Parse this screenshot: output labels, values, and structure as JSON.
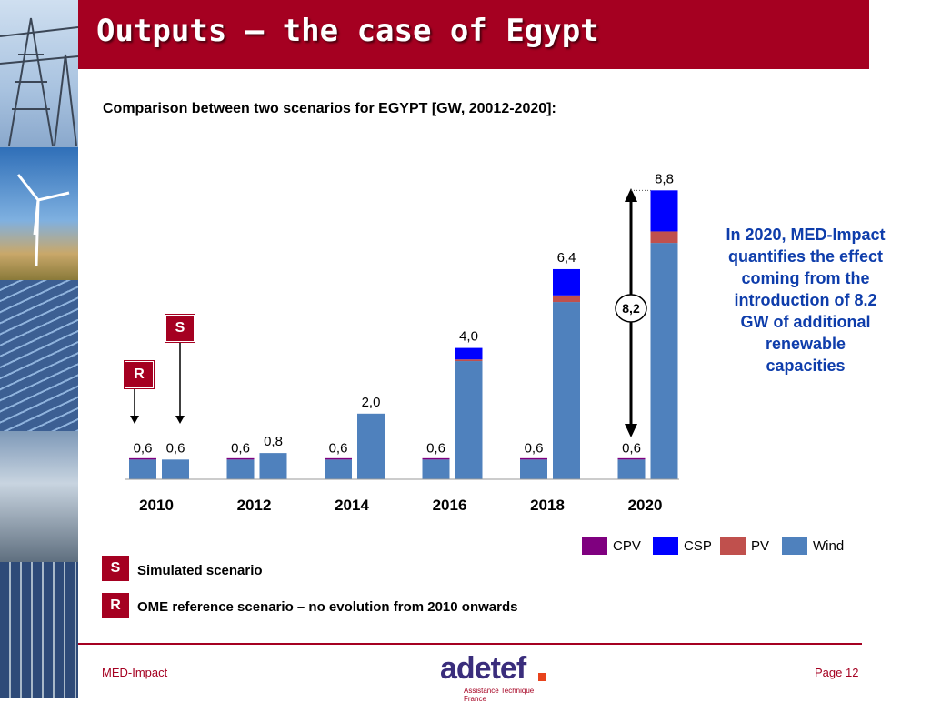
{
  "slide": {
    "title": "Outputs – the case of Egypt",
    "subtitle": "Comparison between two scenarios for EGYPT [GW, 20012-2020]:",
    "callout": "In 2020, MED-Impact quantifies the effect coming from the introduction of 8.2 GW of additional renewable capacities",
    "badge_s": "S",
    "badge_r": "R",
    "key": [
      {
        "badge": "S",
        "label": "Simulated scenario"
      },
      {
        "badge": "R",
        "label": "OME reference scenario – no evolution from 2010 onwards"
      }
    ],
    "footer_left": "MED-Impact",
    "footer_right": "Page 12",
    "logo_text": "adetef",
    "logo_sub": "Assistance Technique France",
    "arrow_label": "8,2"
  },
  "colors": {
    "accent": "#a50021",
    "callout_text": "#0e3dab",
    "wind": "#4f81bd",
    "pv": "#c0504d",
    "csp": "#0000ff",
    "cpv": "#7f007f"
  },
  "chart_data": {
    "type": "bar",
    "stacked": true,
    "categories": [
      "2010",
      "2012",
      "2014",
      "2016",
      "2018",
      "2020"
    ],
    "groups": [
      "R",
      "S"
    ],
    "ylim": [
      0,
      9
    ],
    "series_order": [
      "Wind",
      "PV",
      "CSP",
      "CPV"
    ],
    "legend_order": [
      "CPV",
      "CSP",
      "PV",
      "Wind"
    ],
    "legend_position": "bottom-right",
    "bars": [
      {
        "year": "2010",
        "scenario": "R",
        "total_label": "0,6",
        "Wind": 0.6,
        "PV": 0,
        "CSP": 0,
        "CPV": 0
      },
      {
        "year": "2010",
        "scenario": "S",
        "total_label": "0,6",
        "Wind": 0.6,
        "PV": 0,
        "CSP": 0,
        "CPV": 0
      },
      {
        "year": "2012",
        "scenario": "R",
        "total_label": "0,6",
        "Wind": 0.6,
        "PV": 0,
        "CSP": 0,
        "CPV": 0
      },
      {
        "year": "2012",
        "scenario": "S",
        "total_label": "0,8",
        "Wind": 0.8,
        "PV": 0,
        "CSP": 0,
        "CPV": 0
      },
      {
        "year": "2014",
        "scenario": "R",
        "total_label": "0,6",
        "Wind": 0.6,
        "PV": 0,
        "CSP": 0,
        "CPV": 0
      },
      {
        "year": "2014",
        "scenario": "S",
        "total_label": "2,0",
        "Wind": 2.0,
        "PV": 0,
        "CSP": 0,
        "CPV": 0
      },
      {
        "year": "2016",
        "scenario": "R",
        "total_label": "0,6",
        "Wind": 0.6,
        "PV": 0,
        "CSP": 0,
        "CPV": 0
      },
      {
        "year": "2016",
        "scenario": "S",
        "total_label": "4,0",
        "Wind": 3.6,
        "PV": 0.05,
        "CSP": 0.35,
        "CPV": 0
      },
      {
        "year": "2018",
        "scenario": "R",
        "total_label": "0,6",
        "Wind": 0.6,
        "PV": 0,
        "CSP": 0,
        "CPV": 0
      },
      {
        "year": "2018",
        "scenario": "S",
        "total_label": "6,4",
        "Wind": 5.4,
        "PV": 0.2,
        "CSP": 0.8,
        "CPV": 0
      },
      {
        "year": "2020",
        "scenario": "R",
        "total_label": "0,6",
        "Wind": 0.6,
        "PV": 0,
        "CSP": 0,
        "CPV": 0
      },
      {
        "year": "2020",
        "scenario": "S",
        "total_label": "8,8",
        "Wind": 7.2,
        "PV": 0.35,
        "CSP": 1.25,
        "CPV": 0
      }
    ]
  }
}
